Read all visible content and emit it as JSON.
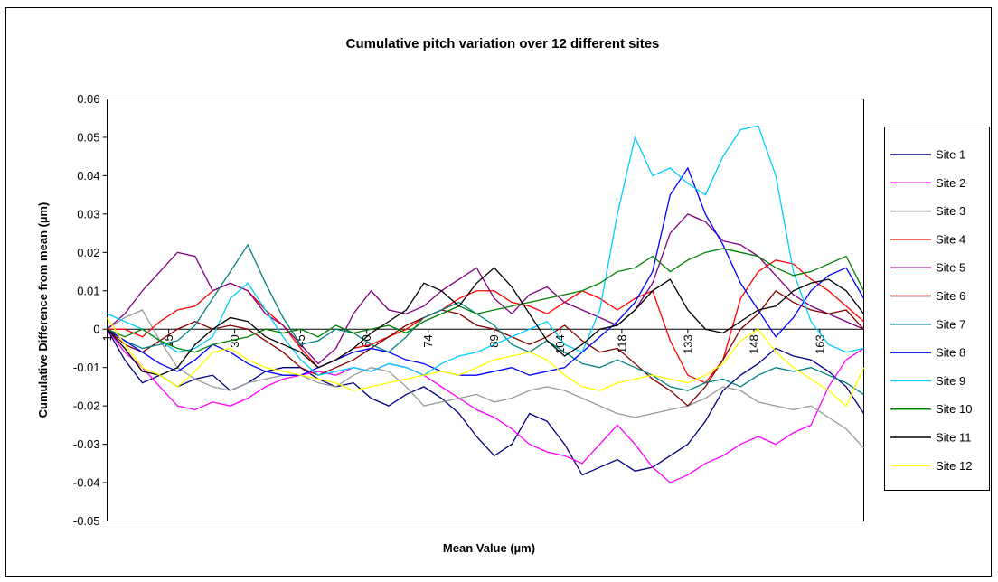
{
  "chart_data": {
    "type": "line",
    "title": "Cumulative pitch variation over 12 different sites",
    "x_label": "Mean Value (µm)",
    "y_label": "Cumulative Difference from mean (µm)",
    "x": [
      1,
      5,
      9,
      13,
      17,
      21,
      25,
      29,
      33,
      37,
      41,
      45,
      49,
      53,
      57,
      61,
      65,
      69,
      73,
      77,
      81,
      85,
      89,
      93,
      97,
      101,
      105,
      109,
      113,
      117,
      121,
      125,
      129,
      133,
      137,
      141,
      145,
      149,
      153,
      157,
      161,
      165,
      169,
      173
    ],
    "xlim": [
      1,
      173
    ],
    "xticks": [
      1,
      15,
      30,
      45,
      60,
      74,
      89,
      104,
      118,
      133,
      148,
      163
    ],
    "ylim": [
      -0.05,
      0.06
    ],
    "yticks": [
      -0.05,
      -0.04,
      -0.03,
      -0.02,
      -0.01,
      0,
      0.01,
      0.02,
      0.03,
      0.04,
      0.05,
      0.06
    ],
    "legend": "right",
    "series": [
      {
        "name": "Site 1",
        "color": "#000080",
        "values": [
          0,
          -0.008,
          -0.014,
          -0.012,
          -0.015,
          -0.013,
          -0.012,
          -0.016,
          -0.014,
          -0.011,
          -0.01,
          -0.01,
          -0.013,
          -0.015,
          -0.014,
          -0.018,
          -0.02,
          -0.017,
          -0.015,
          -0.018,
          -0.022,
          -0.028,
          -0.033,
          -0.03,
          -0.022,
          -0.024,
          -0.03,
          -0.038,
          -0.036,
          -0.034,
          -0.037,
          -0.036,
          -0.033,
          -0.03,
          -0.024,
          -0.016,
          -0.012,
          -0.009,
          -0.005,
          -0.007,
          -0.008,
          -0.011,
          -0.015,
          -0.022
        ]
      },
      {
        "name": "Site 2",
        "color": "#ff00ff",
        "values": [
          0,
          -0.006,
          -0.01,
          -0.015,
          -0.02,
          -0.021,
          -0.019,
          -0.02,
          -0.018,
          -0.015,
          -0.013,
          -0.012,
          -0.011,
          -0.012,
          -0.01,
          -0.011,
          -0.009,
          -0.01,
          -0.012,
          -0.015,
          -0.018,
          -0.021,
          -0.023,
          -0.026,
          -0.03,
          -0.032,
          -0.033,
          -0.035,
          -0.03,
          -0.025,
          -0.03,
          -0.036,
          -0.04,
          -0.038,
          -0.035,
          -0.033,
          -0.03,
          -0.028,
          -0.03,
          -0.027,
          -0.025,
          -0.015,
          -0.008,
          -0.005
        ]
      },
      {
        "name": "Site 3",
        "color": "#999999",
        "values": [
          0,
          0.003,
          0.005,
          -0.003,
          -0.01,
          -0.013,
          -0.015,
          -0.016,
          -0.014,
          -0.013,
          -0.012,
          -0.012,
          -0.014,
          -0.015,
          -0.012,
          -0.01,
          -0.011,
          -0.015,
          -0.02,
          -0.019,
          -0.018,
          -0.017,
          -0.019,
          -0.018,
          -0.016,
          -0.015,
          -0.016,
          -0.018,
          -0.02,
          -0.022,
          -0.023,
          -0.022,
          -0.021,
          -0.02,
          -0.018,
          -0.015,
          -0.016,
          -0.019,
          -0.02,
          -0.021,
          -0.02,
          -0.023,
          -0.026,
          -0.031
        ]
      },
      {
        "name": "Site 4",
        "color": "#ff0000",
        "values": [
          0,
          0,
          -0.002,
          0.002,
          0.005,
          0.006,
          0.01,
          0.012,
          0.01,
          0.005,
          0.001,
          -0.005,
          -0.01,
          -0.008,
          -0.005,
          -0.004,
          -0.002,
          0,
          0.003,
          0.005,
          0.008,
          0.01,
          0.01,
          0.007,
          0.006,
          0.004,
          0.007,
          0.01,
          0.008,
          0.005,
          0.008,
          0.01,
          -0.003,
          -0.012,
          -0.014,
          -0.008,
          0.008,
          0.015,
          0.018,
          0.017,
          0.013,
          0.01,
          0.006,
          0.002
        ]
      },
      {
        "name": "Site 5",
        "color": "#800080",
        "values": [
          0,
          0.004,
          0.01,
          0.015,
          0.02,
          0.019,
          0.01,
          0.012,
          0.01,
          0.004,
          0.001,
          -0.004,
          -0.009,
          -0.005,
          0.004,
          0.01,
          0.005,
          0.004,
          0.006,
          0.01,
          0.013,
          0.016,
          0.008,
          0.004,
          0.009,
          0.011,
          0.007,
          0.005,
          0.003,
          0.001,
          0.005,
          0.012,
          0.025,
          0.03,
          0.028,
          0.023,
          0.022,
          0.019,
          0.014,
          0.009,
          0.006,
          0.004,
          0.002,
          0
        ]
      },
      {
        "name": "Site 6",
        "color": "#800000",
        "values": [
          0,
          -0.004,
          -0.006,
          -0.003,
          0,
          0.002,
          0,
          0.001,
          0,
          -0.003,
          -0.006,
          -0.01,
          -0.012,
          -0.01,
          -0.008,
          -0.005,
          -0.002,
          0.001,
          0.003,
          0.005,
          0.004,
          0.001,
          0,
          -0.002,
          -0.004,
          -0.002,
          0.001,
          -0.003,
          -0.006,
          -0.005,
          -0.009,
          -0.013,
          -0.016,
          -0.02,
          -0.015,
          -0.008,
          0,
          0.004,
          0.01,
          0.007,
          0.005,
          0.004,
          0.005,
          0
        ]
      },
      {
        "name": "Site 7",
        "color": "#008080",
        "values": [
          0,
          -0.003,
          -0.005,
          -0.004,
          -0.003,
          0.001,
          0.008,
          0.015,
          0.022,
          0.012,
          0.003,
          -0.004,
          -0.003,
          0,
          -0.001,
          -0.004,
          -0.006,
          -0.002,
          0.003,
          0.005,
          0.007,
          0.004,
          0.001,
          -0.004,
          -0.006,
          -0.003,
          -0.006,
          -0.009,
          -0.01,
          -0.008,
          -0.01,
          -0.012,
          -0.015,
          -0.016,
          -0.014,
          -0.013,
          -0.015,
          -0.012,
          -0.01,
          -0.011,
          -0.01,
          -0.012,
          -0.014,
          -0.017
        ]
      },
      {
        "name": "Site 8",
        "color": "#0000ff",
        "values": [
          0,
          -0.003,
          -0.006,
          -0.009,
          -0.011,
          -0.008,
          -0.004,
          -0.006,
          -0.009,
          -0.011,
          -0.012,
          -0.012,
          -0.01,
          -0.008,
          -0.006,
          -0.005,
          -0.006,
          -0.008,
          -0.009,
          -0.011,
          -0.012,
          -0.012,
          -0.011,
          -0.01,
          -0.012,
          -0.011,
          -0.01,
          -0.006,
          -0.002,
          0.002,
          0.007,
          0.015,
          0.035,
          0.042,
          0.03,
          0.022,
          0.012,
          0.005,
          -0.002,
          0.003,
          0.01,
          0.014,
          0.016,
          0.008
        ]
      },
      {
        "name": "Site 9",
        "color": "#00ccff",
        "values": [
          0.004,
          0.002,
          0,
          -0.003,
          -0.006,
          -0.005,
          -0.002,
          0.008,
          0.012,
          0.005,
          -0.002,
          -0.008,
          -0.012,
          -0.011,
          -0.01,
          -0.011,
          -0.009,
          -0.01,
          -0.012,
          -0.009,
          -0.007,
          -0.006,
          -0.004,
          -0.002,
          0,
          0.002,
          -0.004,
          -0.006,
          0.005,
          0.03,
          0.05,
          0.04,
          0.042,
          0.038,
          0.035,
          0.045,
          0.052,
          0.053,
          0.04,
          0.015,
          0.002,
          -0.004,
          -0.006,
          -0.005
        ]
      },
      {
        "name": "Site 10",
        "color": "#008000",
        "values": [
          0,
          -0.002,
          0,
          -0.003,
          -0.005,
          -0.006,
          -0.004,
          -0.003,
          -0.002,
          0,
          -0.001,
          0,
          -0.002,
          0.001,
          -0.001,
          0,
          0.001,
          -0.001,
          0.002,
          0.004,
          0.006,
          0.004,
          0.005,
          0.006,
          0.007,
          0.008,
          0.009,
          0.01,
          0.012,
          0.015,
          0.016,
          0.019,
          0.015,
          0.018,
          0.02,
          0.021,
          0.02,
          0.019,
          0.016,
          0.014,
          0.015,
          0.017,
          0.019,
          0.01
        ]
      },
      {
        "name": "Site 11",
        "color": "#000000",
        "values": [
          0,
          -0.005,
          -0.011,
          -0.012,
          -0.01,
          -0.004,
          0,
          0.003,
          0.002,
          -0.002,
          -0.004,
          -0.006,
          -0.01,
          -0.008,
          -0.005,
          -0.001,
          0.002,
          0.005,
          0.012,
          0.01,
          0.006,
          0.012,
          0.016,
          0.011,
          0.004,
          -0.003,
          -0.007,
          -0.004,
          0,
          0.001,
          0.005,
          0.01,
          0.013,
          0.005,
          0,
          -0.001,
          0.002,
          0.005,
          0.006,
          0.01,
          0.012,
          0.013,
          0.01,
          0.004
        ]
      },
      {
        "name": "Site 12",
        "color": "#ffff00",
        "values": [
          0.003,
          -0.004,
          -0.01,
          -0.012,
          -0.015,
          -0.011,
          -0.006,
          -0.005,
          -0.008,
          -0.01,
          -0.011,
          -0.012,
          -0.013,
          -0.014,
          -0.016,
          -0.015,
          -0.014,
          -0.013,
          -0.012,
          -0.011,
          -0.012,
          -0.01,
          -0.008,
          -0.007,
          -0.006,
          -0.008,
          -0.012,
          -0.015,
          -0.016,
          -0.014,
          -0.013,
          -0.012,
          -0.013,
          -0.014,
          -0.012,
          -0.009,
          -0.003,
          0,
          -0.006,
          -0.01,
          -0.013,
          -0.016,
          -0.02,
          -0.01
        ]
      }
    ]
  }
}
